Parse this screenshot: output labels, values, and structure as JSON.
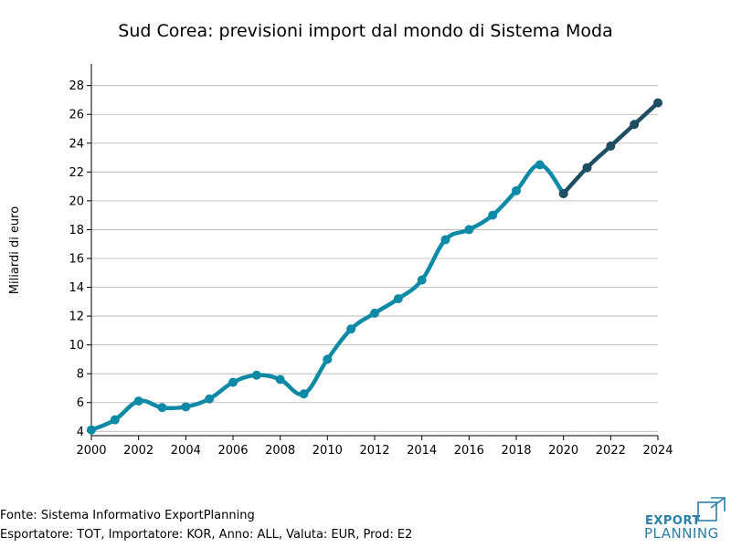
{
  "chart_data": {
    "type": "line",
    "title": "Sud Corea: previsioni import dal mondo di Sistema Moda",
    "xlabel": "",
    "ylabel": "Miliardi di euro",
    "xlim": [
      2000,
      2024
    ],
    "ylim": [
      3.7,
      29.5
    ],
    "x_ticks": [
      "2000",
      "2002",
      "2004",
      "2006",
      "2008",
      "2010",
      "2012",
      "2014",
      "2016",
      "2018",
      "2020",
      "2022",
      "2024"
    ],
    "y_ticks": [
      "4",
      "6",
      "8",
      "10",
      "12",
      "14",
      "16",
      "18",
      "20",
      "22",
      "24",
      "26",
      "28"
    ],
    "grid": "horizontal",
    "series": [
      {
        "color": "#0f8aa6",
        "x": [
          2000,
          2001,
          2002,
          2003,
          2004,
          2005,
          2006,
          2007,
          2008,
          2009,
          2010,
          2011,
          2012,
          2013,
          2014,
          2015,
          2016,
          2017,
          2018,
          2019,
          2020
        ],
        "values": [
          4.1,
          4.8,
          6.1,
          5.65,
          5.7,
          6.25,
          7.4,
          7.9,
          7.6,
          6.6,
          9.0,
          11.1,
          12.2,
          13.2,
          14.5,
          17.3,
          18.0,
          19.0,
          20.7,
          22.5,
          20.5
        ]
      },
      {
        "color": "#1f4e63",
        "x": [
          2020,
          2021,
          2022,
          2023,
          2024
        ],
        "values": [
          20.5,
          22.3,
          23.8,
          25.3,
          26.8
        ]
      }
    ]
  },
  "footer": {
    "source": "Fonte: Sistema Informativo ExportPlanning",
    "details": "Esportatore: TOT, Importatore: KOR, Anno: ALL, Valuta: EUR, Prod: E2"
  },
  "logo": {
    "line1": "EXPORT",
    "line2": "PLANNING",
    "color": "#2a7ea8"
  }
}
